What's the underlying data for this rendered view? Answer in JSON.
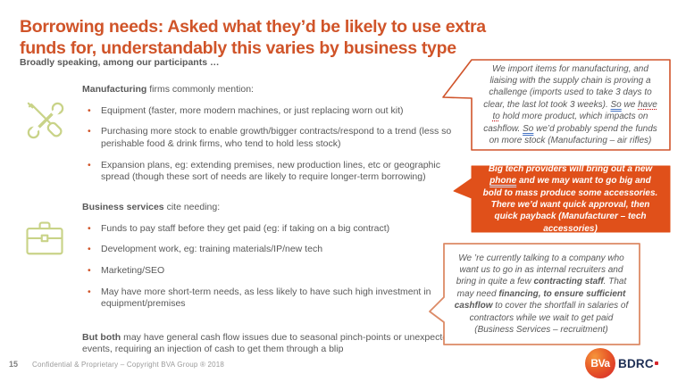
{
  "slide": {
    "title_lines": [
      "Borrowing needs: Asked what they’d be likely to use extra",
      "funds for, understandably this varies by business type"
    ],
    "subtitle": "Broadly speaking, among our participants …",
    "sections": [
      {
        "icon": "tools-icon",
        "heading_bold": "Manufacturing",
        "heading_rest": " firms commonly mention:",
        "bullets": [
          "Equipment (faster, more modern machines, or just replacing worn out kit)",
          "Purchasing more stock to enable growth/bigger contracts/respond to a trend (less so perishable food & drink firms, who tend to hold less stock)",
          "Expansion plans, eg: extending premises, new production lines, etc or geographic spread (though these sort of needs are likely to require longer-term borrowing)"
        ]
      },
      {
        "icon": "briefcase-icon",
        "heading_bold": "Business services",
        "heading_rest": " cite needing:",
        "bullets": [
          "Funds to pay staff before they get paid (eg: if taking on a big contract)",
          "Development work, eg: training materials/IP/new tech",
          "Marketing/SEO",
          "May have more short-term needs, as less likely to have such high investment in equipment/premises"
        ]
      }
    ],
    "closing_bold": "But both",
    "closing_rest": " may have general cash flow issues due to seasonal pinch-points or unexpected events, requiring an injection of cash to get them through a blip",
    "callouts": [
      {
        "name": "manufacturing-air-rifles-quote",
        "style": "outline",
        "segments": [
          {
            "text": "We import items for manufacturing, and liaising with the supply chain is proving a challenge (imports used to take 3 days to clear, the last lot took 3 weeks).  "
          },
          {
            "text": "So",
            "underline": "double-blue"
          },
          {
            "text": " we "
          },
          {
            "text": "have to",
            "underline": "dotted-red"
          },
          {
            "text": " hold more product, which impacts on cashflow.  "
          },
          {
            "text": "So",
            "underline": "double-blue"
          },
          {
            "text": " we’d probably spend the funds on more stock (Manufacturing – air rifles)"
          }
        ]
      },
      {
        "name": "manufacturer-tech-accessories-quote",
        "style": "filled",
        "segments": [
          {
            "text": "Big tech providers will bring out a new "
          },
          {
            "text": "phone",
            "underline": "double-light"
          },
          {
            "text": " and we may want to go big and bold to "
          },
          {
            "text": "mass produce some accessories",
            "bold": true
          },
          {
            "text": ".  There we’d want quick approval, then quick payback (Manufacturer – tech accessories)"
          }
        ]
      },
      {
        "name": "business-services-recruitment-quote",
        "style": "outline",
        "segments": [
          {
            "text": "We ’re currently talking to a company who want us to go in as internal recruiters and bring in quite a few "
          },
          {
            "text": "contracting staff",
            "bold": true
          },
          {
            "text": ".  That may need "
          },
          {
            "text": "financing, to ensure sufficient cashflow",
            "bold": true
          },
          {
            "text": " to cover the shortfall in salaries of contractors while we wait to get paid (Business Services – recruitment)"
          }
        ]
      }
    ],
    "footer": {
      "page_number": "15",
      "text": "Confidential & Proprietary – Copyright BVA Group ®  2018"
    },
    "logo": {
      "circle_text": "BVa",
      "brand_text": "BDRC"
    },
    "colors": {
      "accent_orange": "#D05429",
      "callout_fill": "#E0501A",
      "callout_outline": "#D0542B",
      "callout_outline_light": "#DC8A66",
      "icon_green": "#C9D388",
      "body_gray": "#595959",
      "logo_navy": "#1E2F55",
      "logo_red": "#D5252B"
    }
  }
}
